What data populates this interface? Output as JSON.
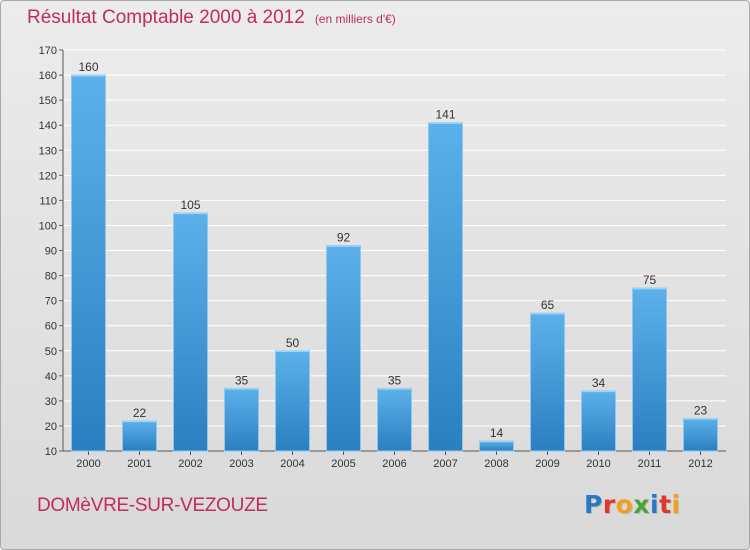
{
  "title": "Résultat Comptable 2000 à 2012",
  "subtitle": "(en milliers d'€)",
  "commune": "DOMèVRE-SUR-VEZOUZE",
  "logo": {
    "text": "Proxiti",
    "colors": [
      "#2a78c4",
      "#e0362c",
      "#f2a01e",
      "#4aa23c",
      "#2a78c4",
      "#e0362c",
      "#f2a01e"
    ]
  },
  "colors": {
    "title": "#c22a62",
    "bar_light": "#5db1ea",
    "bar_dark": "#2a7fc0",
    "grid": "#ffffff"
  },
  "chart_data": {
    "type": "bar",
    "categories": [
      "2000",
      "2001",
      "2002",
      "2003",
      "2004",
      "2005",
      "2006",
      "2007",
      "2008",
      "2009",
      "2010",
      "2011",
      "2012"
    ],
    "values": [
      160,
      22,
      105,
      35,
      50,
      92,
      35,
      141,
      14,
      65,
      34,
      75,
      23
    ],
    "ylim": [
      10,
      170
    ],
    "yticks": [
      10,
      20,
      30,
      40,
      50,
      60,
      70,
      80,
      90,
      100,
      110,
      120,
      130,
      140,
      150,
      160,
      170
    ],
    "grid": true,
    "legend": "none"
  }
}
